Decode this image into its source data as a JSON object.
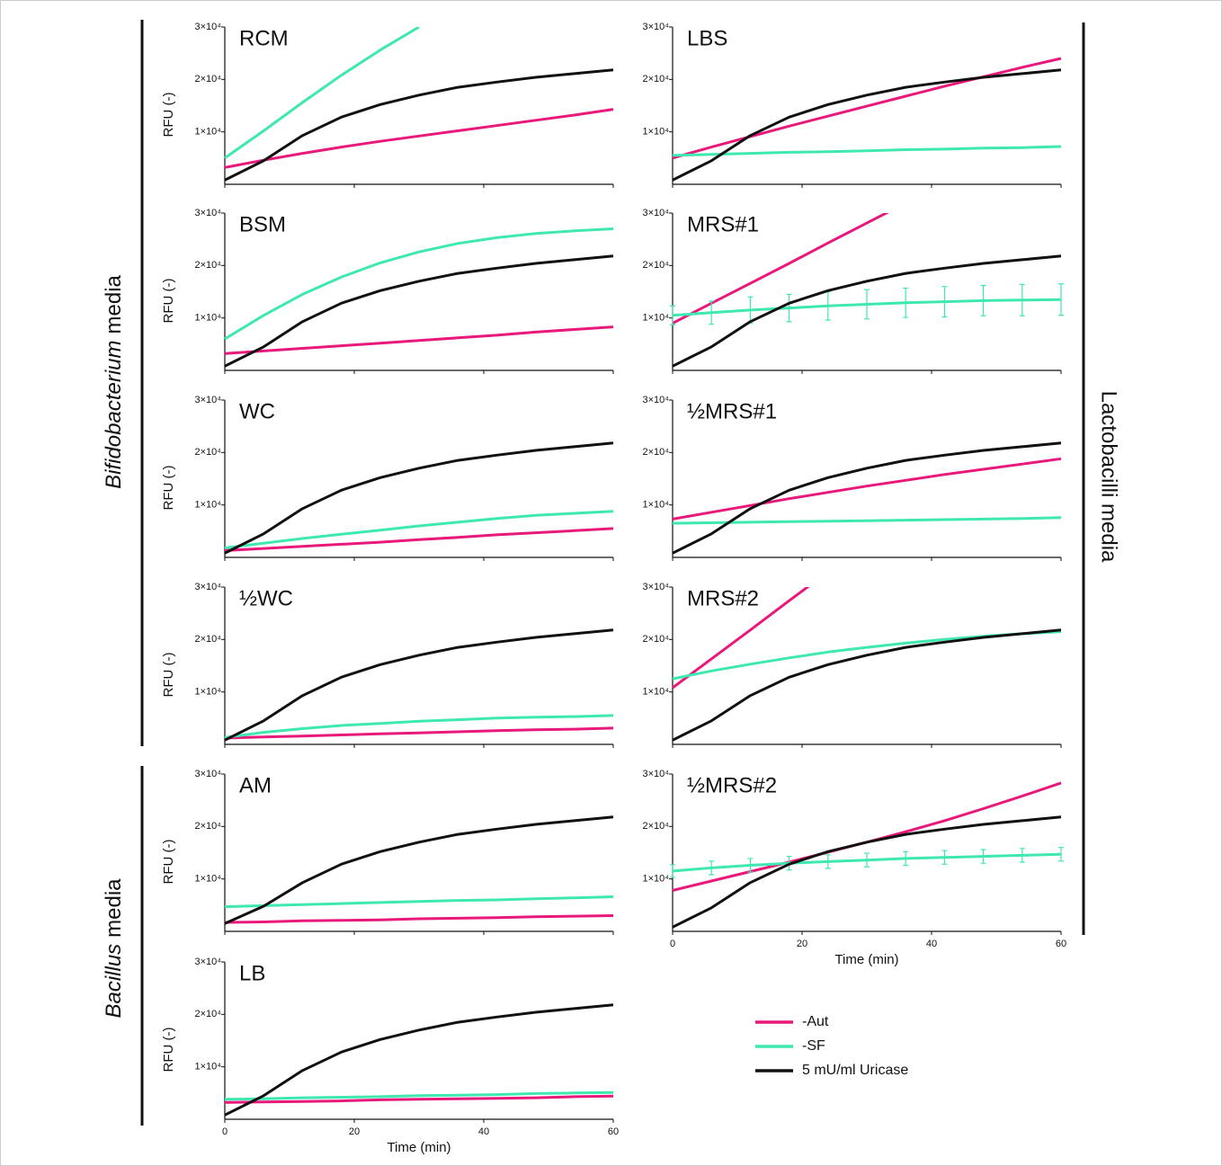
{
  "chart_data": [
    {
      "type": "line",
      "title": "RCM",
      "ylabel": "RFU (-)",
      "x": [
        0,
        6,
        12,
        18,
        24,
        30,
        36,
        42,
        48,
        54,
        60
      ],
      "xlim": [
        0,
        60
      ],
      "xticks": [
        0,
        20,
        40,
        60
      ],
      "ylim": [
        0,
        30000
      ],
      "yticks": [
        {
          "value": 10000,
          "label": "1×10⁴"
        },
        {
          "value": 20000,
          "label": "2×10⁴"
        },
        {
          "value": 30000,
          "label": "3×10⁴"
        }
      ],
      "series": [
        {
          "name": "-Aut",
          "color": "#e8197a",
          "values": [
            3200,
            4600,
            5900,
            7100,
            8200,
            9200,
            10200,
            11200,
            12200,
            13200,
            14300
          ]
        },
        {
          "name": "-SF",
          "color": "#3ee8b0",
          "values": [
            5000,
            10200,
            15600,
            20800,
            25600,
            30000,
            null,
            null,
            null,
            null,
            null
          ]
        },
        {
          "name": "5 mU/ml Uricase",
          "color": "#111111",
          "values": [
            800,
            4500,
            9300,
            12800,
            15200,
            17000,
            18500,
            19500,
            20400,
            21100,
            21800
          ]
        }
      ]
    },
    {
      "type": "line",
      "title": "BSM",
      "ylabel": "RFU (-)",
      "x": [
        0,
        6,
        12,
        18,
        24,
        30,
        36,
        42,
        48,
        54,
        60
      ],
      "xlim": [
        0,
        60
      ],
      "xticks": [
        0,
        20,
        40,
        60
      ],
      "ylim": [
        0,
        30000
      ],
      "yticks": [
        {
          "value": 10000,
          "label": "1×10⁴"
        },
        {
          "value": 20000,
          "label": "2×10⁴"
        },
        {
          "value": 30000,
          "label": "3×10⁴"
        }
      ],
      "series": [
        {
          "name": "-Aut",
          "color": "#e8197a",
          "values": [
            3200,
            3700,
            4200,
            4700,
            5200,
            5700,
            6200,
            6700,
            7300,
            7800,
            8300
          ]
        },
        {
          "name": "-SF",
          "color": "#3ee8b0",
          "values": [
            6000,
            10500,
            14500,
            17800,
            20500,
            22600,
            24200,
            25300,
            26100,
            26600,
            27000
          ]
        },
        {
          "name": "5 mU/ml Uricase",
          "color": "#111111",
          "values": [
            800,
            4500,
            9300,
            12800,
            15200,
            17000,
            18500,
            19500,
            20400,
            21100,
            21800
          ]
        }
      ]
    },
    {
      "type": "line",
      "title": "WC",
      "ylabel": "RFU (-)",
      "x": [
        0,
        6,
        12,
        18,
        24,
        30,
        36,
        42,
        48,
        54,
        60
      ],
      "xlim": [
        0,
        60
      ],
      "xticks": [
        0,
        20,
        40,
        60
      ],
      "ylim": [
        0,
        30000
      ],
      "yticks": [
        {
          "value": 10000,
          "label": "1×10⁴"
        },
        {
          "value": 20000,
          "label": "2×10⁴"
        },
        {
          "value": 30000,
          "label": "3×10⁴"
        }
      ],
      "series": [
        {
          "name": "-Aut",
          "color": "#e8197a",
          "values": [
            1300,
            1700,
            2100,
            2500,
            2900,
            3400,
            3800,
            4300,
            4700,
            5100,
            5500
          ]
        },
        {
          "name": "-SF",
          "color": "#3ee8b0",
          "values": [
            1800,
            2700,
            3600,
            4400,
            5200,
            6000,
            6700,
            7400,
            8000,
            8400,
            8800
          ]
        },
        {
          "name": "5 mU/ml Uricase",
          "color": "#111111",
          "values": [
            800,
            4500,
            9300,
            12800,
            15200,
            17000,
            18500,
            19500,
            20400,
            21100,
            21800
          ]
        }
      ]
    },
    {
      "type": "line",
      "title": "½WC",
      "ylabel": "RFU (-)",
      "x": [
        0,
        6,
        12,
        18,
        24,
        30,
        36,
        42,
        48,
        54,
        60
      ],
      "xlim": [
        0,
        60
      ],
      "xticks": [
        0,
        20,
        40,
        60
      ],
      "ylim": [
        0,
        30000
      ],
      "yticks": [
        {
          "value": 10000,
          "label": "1×10⁴"
        },
        {
          "value": 20000,
          "label": "2×10⁴"
        },
        {
          "value": 30000,
          "label": "3×10⁴"
        }
      ],
      "series": [
        {
          "name": "-Aut",
          "color": "#e8197a",
          "values": [
            1200,
            1400,
            1600,
            1800,
            2000,
            2200,
            2400,
            2600,
            2800,
            2900,
            3100
          ]
        },
        {
          "name": "-SF",
          "color": "#3ee8b0",
          "values": [
            1300,
            2300,
            3000,
            3600,
            4000,
            4400,
            4700,
            5000,
            5200,
            5300,
            5500
          ]
        },
        {
          "name": "5 mU/ml Uricase",
          "color": "#111111",
          "values": [
            800,
            4500,
            9300,
            12800,
            15200,
            17000,
            18500,
            19500,
            20400,
            21100,
            21800
          ]
        }
      ]
    },
    {
      "type": "line",
      "title": "AM",
      "ylabel": "RFU (-)",
      "x": [
        0,
        6,
        12,
        18,
        24,
        30,
        36,
        42,
        48,
        54,
        60
      ],
      "xlim": [
        0,
        60
      ],
      "xticks": [
        0,
        20,
        40,
        60
      ],
      "ylim": [
        0,
        30000
      ],
      "yticks": [
        {
          "value": 10000,
          "label": "1×10⁴"
        },
        {
          "value": 20000,
          "label": "2×10⁴"
        },
        {
          "value": 30000,
          "label": "3×10⁴"
        }
      ],
      "series": [
        {
          "name": "-Aut",
          "color": "#e8197a",
          "values": [
            1700,
            1800,
            2000,
            2100,
            2200,
            2400,
            2500,
            2600,
            2800,
            2900,
            3000
          ]
        },
        {
          "name": "-SF",
          "color": "#3ee8b0",
          "values": [
            4700,
            4900,
            5100,
            5300,
            5500,
            5700,
            5900,
            6000,
            6200,
            6400,
            6600
          ]
        },
        {
          "name": "5 mU/ml Uricase",
          "color": "#111111",
          "values": [
            1500,
            4800,
            9300,
            12800,
            15200,
            17000,
            18500,
            19500,
            20400,
            21100,
            21800
          ]
        }
      ]
    },
    {
      "type": "line",
      "title": "LB",
      "ylabel": "RFU (-)",
      "xlabel": "Time (min)",
      "x": [
        0,
        6,
        12,
        18,
        24,
        30,
        36,
        42,
        48,
        54,
        60
      ],
      "xlim": [
        0,
        60
      ],
      "xticks": [
        0,
        20,
        40,
        60
      ],
      "ylim": [
        0,
        30000
      ],
      "yticks": [
        {
          "value": 10000,
          "label": "1×10⁴"
        },
        {
          "value": 20000,
          "label": "2×10⁴"
        },
        {
          "value": 30000,
          "label": "3×10⁴"
        }
      ],
      "series": [
        {
          "name": "-Aut",
          "color": "#e8197a",
          "values": [
            3200,
            3300,
            3400,
            3500,
            3700,
            3800,
            3900,
            4000,
            4100,
            4300,
            4400
          ]
        },
        {
          "name": "-SF",
          "color": "#3ee8b0",
          "values": [
            3800,
            3900,
            4100,
            4200,
            4300,
            4500,
            4600,
            4700,
            4900,
            5000,
            5100
          ]
        },
        {
          "name": "5 mU/ml Uricase",
          "color": "#111111",
          "values": [
            800,
            4500,
            9300,
            12800,
            15200,
            17000,
            18500,
            19500,
            20400,
            21100,
            21800
          ]
        }
      ]
    },
    {
      "type": "line",
      "title": "LBS",
      "x": [
        0,
        6,
        12,
        18,
        24,
        30,
        36,
        42,
        48,
        54,
        60
      ],
      "xlim": [
        0,
        60
      ],
      "xticks": [
        0,
        20,
        40,
        60
      ],
      "ylim": [
        0,
        30000
      ],
      "yticks": [
        {
          "value": 10000,
          "label": "1×10⁴"
        },
        {
          "value": 20000,
          "label": "2×10⁴"
        },
        {
          "value": 30000,
          "label": "3×10⁴"
        }
      ],
      "series": [
        {
          "name": "-Aut",
          "color": "#e8197a",
          "values": [
            5000,
            7100,
            9100,
            11100,
            13000,
            14900,
            16800,
            18700,
            20500,
            22300,
            24000
          ]
        },
        {
          "name": "-SF",
          "color": "#3ee8b0",
          "values": [
            5500,
            5700,
            5900,
            6100,
            6200,
            6400,
            6600,
            6700,
            6900,
            7000,
            7200
          ]
        },
        {
          "name": "5 mU/ml Uricase",
          "color": "#111111",
          "values": [
            800,
            4500,
            9300,
            12800,
            15200,
            17000,
            18500,
            19500,
            20400,
            21100,
            21800
          ]
        }
      ]
    },
    {
      "type": "line",
      "title": "MRS#1",
      "x": [
        0,
        6,
        12,
        18,
        24,
        30,
        36,
        42,
        48,
        54,
        60
      ],
      "xlim": [
        0,
        60
      ],
      "xticks": [
        0,
        20,
        40,
        60
      ],
      "ylim": [
        0,
        30000
      ],
      "yticks": [
        {
          "value": 10000,
          "label": "1×10⁴"
        },
        {
          "value": 20000,
          "label": "2×10⁴"
        },
        {
          "value": 30000,
          "label": "3×10⁴"
        }
      ],
      "series": [
        {
          "name": "-Aut",
          "color": "#e8197a",
          "values": [
            9000,
            12800,
            16600,
            20400,
            24300,
            28100,
            31900,
            null,
            null,
            null,
            null
          ]
        },
        {
          "name": "-SF",
          "color": "#3ee8b0",
          "values": [
            10500,
            11000,
            11500,
            11900,
            12300,
            12600,
            12900,
            13100,
            13300,
            13400,
            13500
          ],
          "errors": [
            1800,
            2200,
            2500,
            2600,
            2700,
            2800,
            2800,
            2900,
            2900,
            3000,
            3000
          ]
        },
        {
          "name": "5 mU/ml Uricase",
          "color": "#111111",
          "values": [
            800,
            4500,
            9300,
            12800,
            15200,
            17000,
            18500,
            19500,
            20400,
            21100,
            21800
          ]
        }
      ]
    },
    {
      "type": "line",
      "title": "½MRS#1",
      "x": [
        0,
        6,
        12,
        18,
        24,
        30,
        36,
        42,
        48,
        54,
        60
      ],
      "xlim": [
        0,
        60
      ],
      "xticks": [
        0,
        20,
        40,
        60
      ],
      "ylim": [
        0,
        30000
      ],
      "yticks": [
        {
          "value": 10000,
          "label": "1×10⁴"
        },
        {
          "value": 20000,
          "label": "2×10⁴"
        },
        {
          "value": 30000,
          "label": "3×10⁴"
        }
      ],
      "series": [
        {
          "name": "-Aut",
          "color": "#e8197a",
          "values": [
            7300,
            8600,
            9900,
            11200,
            12400,
            13600,
            14700,
            15800,
            16800,
            17800,
            18800
          ]
        },
        {
          "name": "-SF",
          "color": "#3ee8b0",
          "values": [
            6500,
            6600,
            6700,
            6800,
            6900,
            7000,
            7100,
            7200,
            7300,
            7400,
            7600
          ]
        },
        {
          "name": "5 mU/ml Uricase",
          "color": "#111111",
          "values": [
            800,
            4500,
            9300,
            12800,
            15200,
            17000,
            18500,
            19500,
            20400,
            21100,
            21800
          ]
        }
      ]
    },
    {
      "type": "line",
      "title": "MRS#2",
      "x": [
        0,
        6,
        12,
        18,
        24,
        30,
        36,
        42,
        48,
        54,
        60
      ],
      "xlim": [
        0,
        60
      ],
      "xticks": [
        0,
        20,
        40,
        60
      ],
      "ylim": [
        0,
        30000
      ],
      "yticks": [
        {
          "value": 10000,
          "label": "1×10⁴"
        },
        {
          "value": 20000,
          "label": "2×10⁴"
        },
        {
          "value": 30000,
          "label": "3×10⁴"
        }
      ],
      "series": [
        {
          "name": "-Aut",
          "color": "#e8197a",
          "values": [
            10800,
            16300,
            21800,
            27400,
            32900,
            null,
            null,
            null,
            null,
            null,
            null
          ]
        },
        {
          "name": "-SF",
          "color": "#3ee8b0",
          "values": [
            12500,
            14000,
            15300,
            16500,
            17600,
            18500,
            19300,
            20000,
            20600,
            21100,
            21500
          ]
        },
        {
          "name": "5 mU/ml Uricase",
          "color": "#111111",
          "values": [
            800,
            4500,
            9300,
            12800,
            15200,
            17000,
            18500,
            19500,
            20400,
            21100,
            21800
          ]
        }
      ]
    },
    {
      "type": "line",
      "title": "½MRS#2",
      "xlabel": "Time (min)",
      "x": [
        0,
        6,
        12,
        18,
        24,
        30,
        36,
        42,
        48,
        54,
        60
      ],
      "xlim": [
        0,
        60
      ],
      "xticks": [
        0,
        20,
        40,
        60
      ],
      "ylim": [
        0,
        30000
      ],
      "yticks": [
        {
          "value": 10000,
          "label": "1×10⁴"
        },
        {
          "value": 20000,
          "label": "2×10⁴"
        },
        {
          "value": 30000,
          "label": "3×10⁴"
        }
      ],
      "series": [
        {
          "name": "-Aut",
          "color": "#e8197a",
          "values": [
            7800,
            9600,
            11400,
            13200,
            15100,
            17000,
            19000,
            21100,
            23400,
            25800,
            28300
          ]
        },
        {
          "name": "-SF",
          "color": "#3ee8b0",
          "values": [
            11500,
            12100,
            12600,
            13000,
            13300,
            13600,
            13900,
            14100,
            14300,
            14500,
            14700
          ],
          "errors": [
            1200,
            1300,
            1300,
            1300,
            1300,
            1300,
            1300,
            1300,
            1300,
            1300,
            1300
          ]
        },
        {
          "name": "5 mU/ml Uricase",
          "color": "#111111",
          "values": [
            800,
            4500,
            9300,
            12800,
            15200,
            17000,
            18500,
            19500,
            20400,
            21100,
            21800
          ]
        }
      ]
    }
  ],
  "groups": [
    {
      "italic": "Bifidobacterium",
      "label": "media"
    },
    {
      "italic": "Bacillus",
      "label": "media"
    },
    {
      "label": "Lactobacilli media"
    }
  ]
}
